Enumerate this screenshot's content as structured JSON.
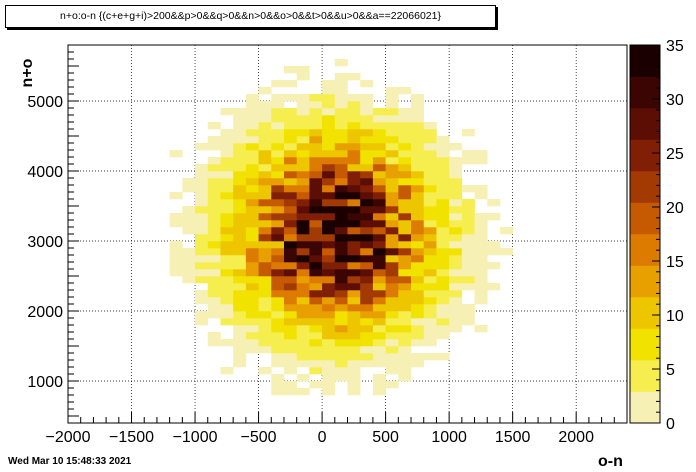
{
  "title": "n+o:o-n {(c+e+g+i)>200&&p>0&&q>0&&n>0&&o>0&&t>0&&u>0&&a==22066021}",
  "timestamp": "Wed Mar 10 15:48:33 2021",
  "chart_data": {
    "type": "heatmap",
    "title": "n+o:o-n {(c+e+g+i)>200&&p>0&&q>0&&n>0&&o>0&&t>0&&u>0&&a==22066021}",
    "xlabel": "o-n",
    "ylabel": "n+o",
    "xlim": [
      -2000,
      2400
    ],
    "ylim": [
      400,
      5800
    ],
    "xticks": [
      -2000,
      -1500,
      -1000,
      -500,
      0,
      500,
      1000,
      1500,
      2000
    ],
    "yticks": [
      1000,
      2000,
      3000,
      4000,
      5000
    ],
    "grid": true,
    "bin_width_x": 100,
    "bin_width_y": 100,
    "colorbar": {
      "min": 0,
      "max": 35,
      "ticks": [
        0,
        5,
        10,
        15,
        20,
        25,
        30,
        35
      ],
      "colors": [
        "#f7f0b4",
        "#f6ee4e",
        "#f1e200",
        "#eec600",
        "#e89f00",
        "#dd7a00",
        "#c55a02",
        "#a33a04",
        "#801f05",
        "#5c0e04",
        "#3a0502",
        "#1a0100"
      ]
    },
    "gaussian_fit_estimate": {
      "mean_x": 100,
      "mean_y": 3100,
      "sigma_x": 480,
      "sigma_y": 850,
      "peak": 32
    }
  }
}
